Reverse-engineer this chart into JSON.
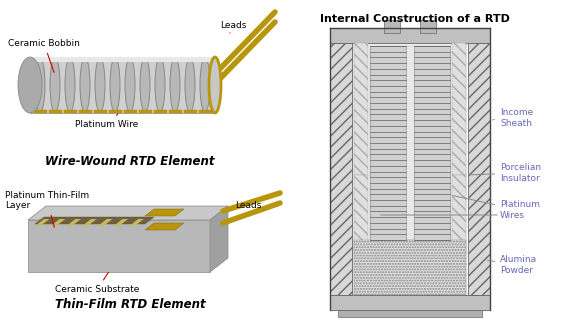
{
  "title": "Internal Construction of a RTD",
  "background_color": "#ffffff",
  "label_color_blue": "#6666bb",
  "label_color_red": "#cc0000",
  "label_color_black": "#111111",
  "wire_wound_label": "Wire-Wound RTD Element",
  "thin_film_label": "Thin-Film RTD Element",
  "wire_color": "#b8960c",
  "bobbin_color": "#d0d0d0",
  "bobbin_dark": "#aaaaaa",
  "sheath_hatch_color": "#888888",
  "coil_color": "#909090",
  "substrate_top": "#c8c8c8",
  "substrate_front": "#b0b0b0",
  "substrate_side": "#989898",
  "film_pattern_color": "#7a7050"
}
